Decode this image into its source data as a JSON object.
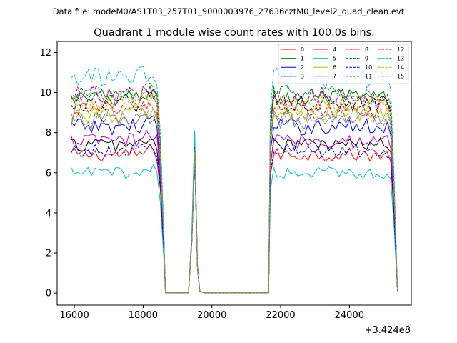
{
  "header_text": "Data file: modeM0/AS1T03_257T01_9000003976_27636cztM0_level2_quad_clean.evt",
  "chart_data": {
    "type": "line",
    "title": "Quadrant 1 module wise count rates with 100.0s bins.",
    "xlabel": "",
    "ylabel": "",
    "x_offset_label": "+3.424e8",
    "xlim": [
      15500,
      25800
    ],
    "ylim": [
      -0.6,
      12.55
    ],
    "xticks": [
      16000,
      18000,
      20000,
      22000,
      24000
    ],
    "xtick_labels": [
      "16000",
      "18000",
      "20000",
      "22000",
      "24000"
    ],
    "yticks": [
      0,
      2,
      4,
      6,
      8,
      10,
      12
    ],
    "ytick_labels": [
      "0",
      "2",
      "4",
      "6",
      "8",
      "10",
      "12"
    ],
    "grid": false,
    "legend_position": "top-right",
    "segments": [
      {
        "start": 15900,
        "end": 18600,
        "step": 100
      },
      {
        "start": 19400,
        "end": 19800,
        "step": 100
      },
      {
        "start": 21600,
        "end": 25400,
        "step": 100
      }
    ],
    "gap_value": 0.02,
    "spike_peak_x": 19500,
    "series": [
      {
        "name": "0",
        "color": "#ff0000",
        "dash": "solid",
        "base_level": 6.9,
        "spike_peak": 6.8
      },
      {
        "name": "1",
        "color": "#008000",
        "dash": "solid",
        "base_level": 9.7,
        "spike_peak": 7.6
      },
      {
        "name": "2",
        "color": "#0000ff",
        "dash": "solid",
        "base_level": 8.3,
        "spike_peak": 7.2
      },
      {
        "name": "3",
        "color": "#000000",
        "dash": "solid",
        "base_level": 7.4,
        "spike_peak": 6.9
      },
      {
        "name": "4",
        "color": "#bf00bf",
        "dash": "solid",
        "base_level": 7.6,
        "spike_peak": 7.0
      },
      {
        "name": "5",
        "color": "#00bfbf",
        "dash": "solid",
        "base_level": 6.0,
        "spike_peak": 8.1
      },
      {
        "name": "6",
        "color": "#bfbf00",
        "dash": "solid",
        "base_level": 8.9,
        "spike_peak": 7.4
      },
      {
        "name": "7",
        "color": "#808080",
        "dash": "solid",
        "base_level": 8.6,
        "spike_peak": 7.1
      },
      {
        "name": "8",
        "color": "#ff0000",
        "dash": "dashed",
        "base_level": 9.2,
        "spike_peak": 7.0
      },
      {
        "name": "9",
        "color": "#008000",
        "dash": "dashed",
        "base_level": 9.9,
        "spike_peak": 7.5
      },
      {
        "name": "10",
        "color": "#0000ff",
        "dash": "dashed",
        "base_level": 7.1,
        "spike_peak": 6.6
      },
      {
        "name": "11",
        "color": "#000000",
        "dash": "dashed",
        "base_level": 9.5,
        "spike_peak": 7.3
      },
      {
        "name": "12",
        "color": "#bf00bf",
        "dash": "dashed",
        "base_level": 9.8,
        "spike_peak": 7.2
      },
      {
        "name": "13",
        "color": "#00bfbf",
        "dash": "dashed",
        "base_level": 10.7,
        "spike_peak": 7.9
      },
      {
        "name": "14",
        "color": "#bfbf00",
        "dash": "dashed",
        "base_level": 9.4,
        "spike_peak": 7.0
      },
      {
        "name": "15",
        "color": "#808080",
        "dash": "dashed",
        "base_level": 8.8,
        "spike_peak": 6.9
      }
    ]
  }
}
